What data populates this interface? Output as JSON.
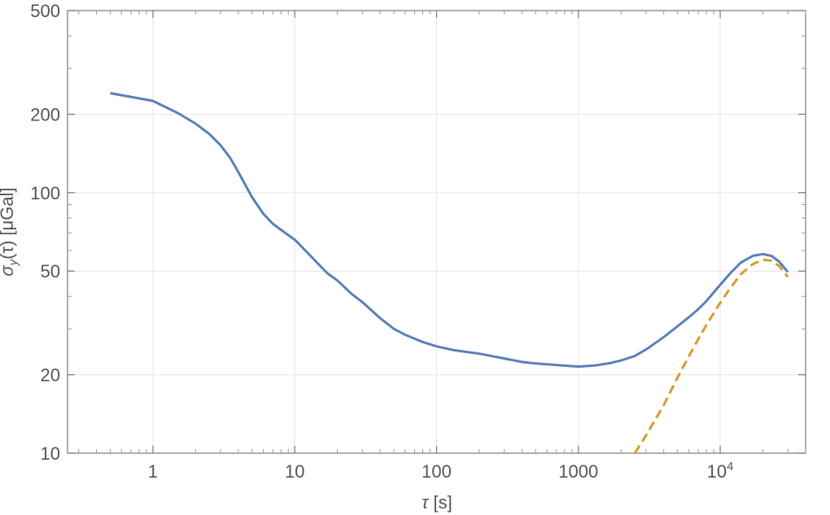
{
  "chart_data": {
    "type": "line",
    "xlabel_symbol": "τ",
    "xlabel_unit": "[s]",
    "ylabel_symbol": "σ",
    "ylabel_sub": "y",
    "ylabel_arg": "(τ)",
    "ylabel_unit": "[μGal]",
    "x_scale": "log",
    "y_scale": "log",
    "xlim": [
      0.25,
      40000
    ],
    "ylim": [
      10,
      500
    ],
    "grid": true,
    "x_ticks": [
      {
        "value": 1,
        "label": "1"
      },
      {
        "value": 10,
        "label": "10"
      },
      {
        "value": 100,
        "label": "100"
      },
      {
        "value": 1000,
        "label": "1000"
      },
      {
        "value": 10000,
        "label": "10",
        "exp": "4"
      }
    ],
    "y_ticks": [
      {
        "value": 10,
        "label": "10"
      },
      {
        "value": 20,
        "label": "20"
      },
      {
        "value": 50,
        "label": "50"
      },
      {
        "value": 100,
        "label": "100"
      },
      {
        "value": 200,
        "label": "200"
      },
      {
        "value": 500,
        "label": "500"
      }
    ],
    "series": [
      {
        "style": "solid",
        "color": "#5b7fb8",
        "x": [
          0.5,
          1,
          1.5,
          2,
          2.5,
          3,
          3.5,
          4,
          5,
          6,
          7,
          8,
          10,
          13,
          17,
          20,
          25,
          30,
          40,
          50,
          60,
          70,
          80,
          100,
          130,
          160,
          200,
          300,
          400,
          500,
          700,
          1000,
          1300,
          1700,
          2000,
          2500,
          3000,
          4000,
          5000,
          6000,
          7000,
          8000,
          10000,
          12000,
          14000,
          17000,
          20000,
          23000,
          26000,
          30000
        ],
        "y": [
          241,
          225,
          202,
          184,
          168,
          152,
          136,
          120,
          96,
          83,
          76,
          72,
          66,
          57,
          49,
          46,
          41,
          38,
          33,
          30,
          28.5,
          27.5,
          26.7,
          25.7,
          24.9,
          24.5,
          24.1,
          23.1,
          22.4,
          22.1,
          21.8,
          21.5,
          21.7,
          22.2,
          22.7,
          23.6,
          25,
          27.9,
          30.7,
          33.2,
          35.7,
          38.4,
          44.3,
          49.6,
          53.9,
          57.2,
          58.1,
          57.2,
          54.4,
          49.6
        ]
      },
      {
        "style": "dashed",
        "color": "#d99a2b",
        "x": [
          2500,
          3000,
          4000,
          5000,
          6000,
          7000,
          8000,
          10000,
          12000,
          14000,
          17000,
          20000,
          23000,
          26000,
          30000
        ],
        "y": [
          10,
          11.7,
          15.3,
          19.5,
          23.5,
          27.4,
          31.1,
          37.8,
          43.6,
          48.7,
          53.2,
          55.3,
          54.8,
          52.4,
          47.5
        ]
      }
    ]
  }
}
